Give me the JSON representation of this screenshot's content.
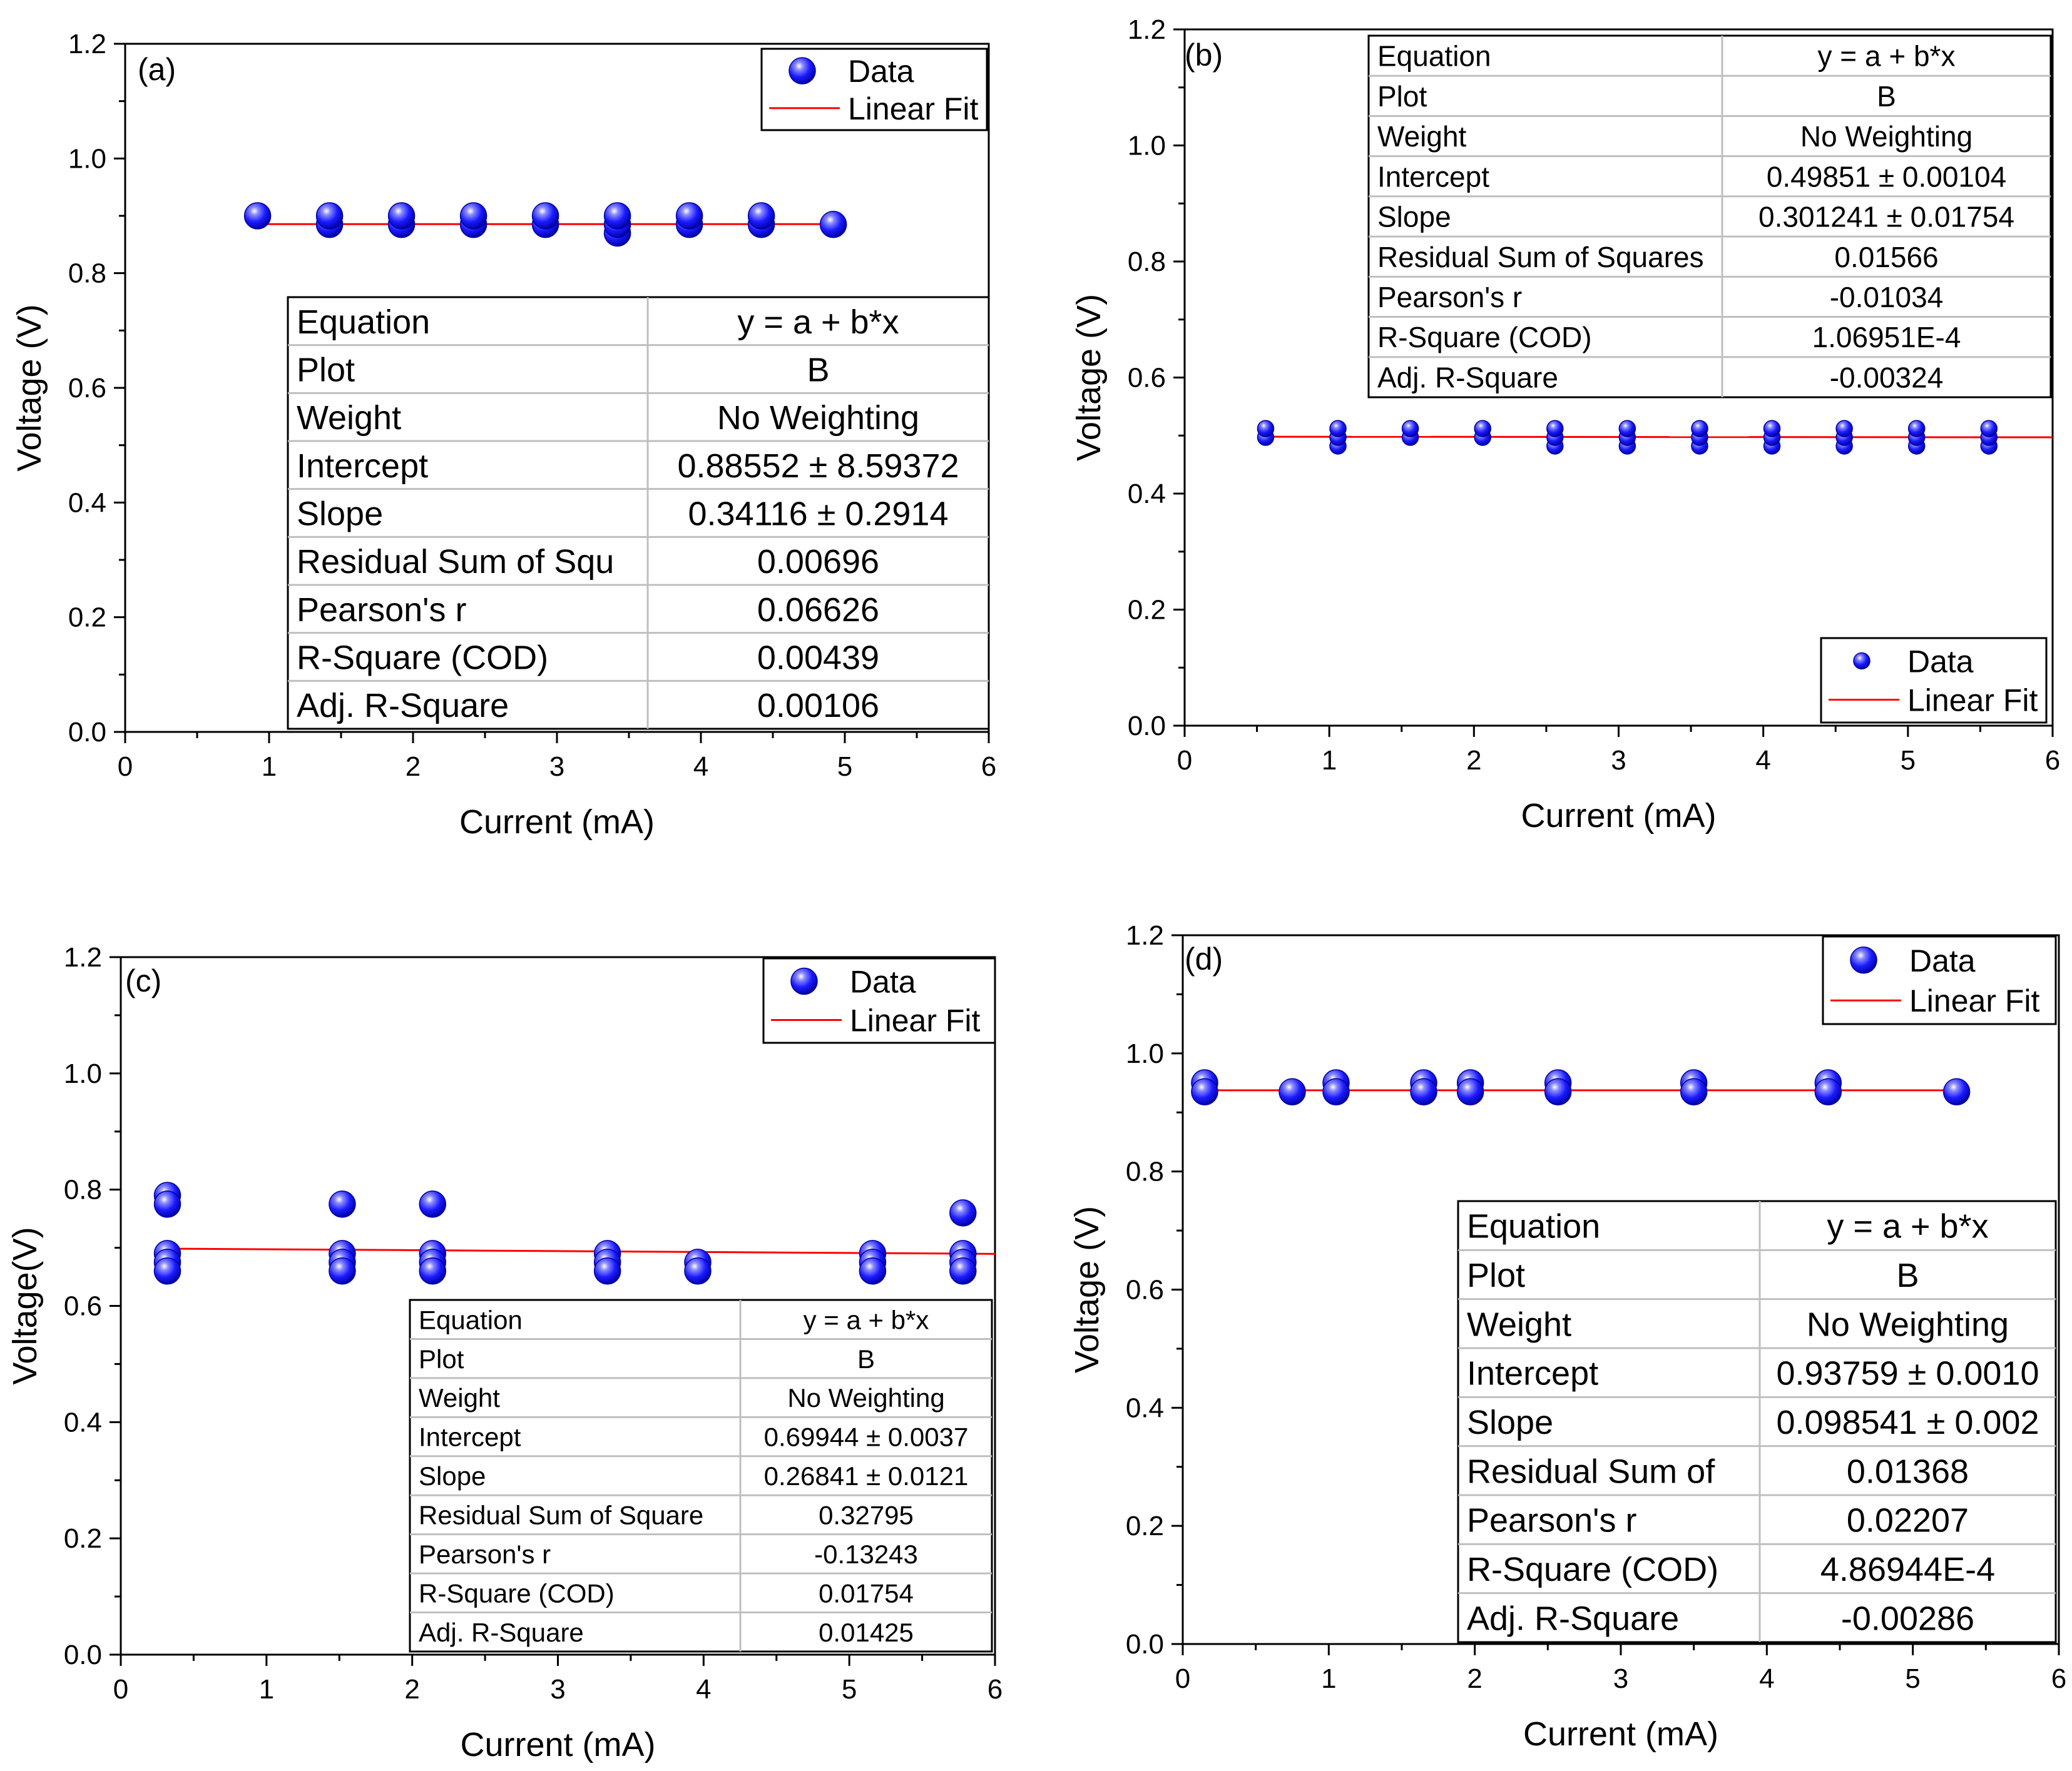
{
  "colors": {
    "marker": "#1a1aff",
    "marker_dark": "#0000a0",
    "fit_line": "#ff0000",
    "axis": "#000000",
    "table_grid": "#bfbfbf"
  },
  "chart_data": [
    {
      "panel": "(a)",
      "type": "scatter",
      "xlabel": "Current (mA)",
      "ylabel": "Voltage (V)",
      "xlim": [
        0,
        6
      ],
      "ylim": [
        0,
        1.2
      ],
      "xticks": [
        "0",
        "1",
        "2",
        "3",
        "4",
        "5",
        "6"
      ],
      "yticks": [
        "0.0",
        "0.2",
        "0.4",
        "0.6",
        "0.8",
        "1.0",
        "1.2"
      ],
      "legend": {
        "position": "top-right",
        "entries": [
          "Data",
          "Linear Fit"
        ]
      },
      "series": [
        {
          "name": "Data",
          "points": [
            [
              0.92,
              0.9
            ],
            [
              1.42,
              0.885
            ],
            [
              1.42,
              0.9
            ],
            [
              1.92,
              0.885
            ],
            [
              1.92,
              0.9
            ],
            [
              2.42,
              0.885
            ],
            [
              2.42,
              0.9
            ],
            [
              2.92,
              0.885
            ],
            [
              2.92,
              0.9
            ],
            [
              3.42,
              0.87
            ],
            [
              3.42,
              0.885
            ],
            [
              3.42,
              0.9
            ],
            [
              3.92,
              0.885
            ],
            [
              3.92,
              0.9
            ],
            [
              4.42,
              0.885
            ],
            [
              4.42,
              0.9
            ],
            [
              4.92,
              0.885
            ]
          ]
        },
        {
          "name": "Linear Fit",
          "line": [
            [
              0.92,
              0.8855
            ],
            [
              4.92,
              0.8855
            ]
          ]
        }
      ],
      "fit_table": {
        "rows": [
          [
            "Equation",
            "y = a + b*x"
          ],
          [
            "Plot",
            "B"
          ],
          [
            "Weight",
            "No Weighting"
          ],
          [
            "Intercept",
            "0.88552 ± 8.59372"
          ],
          [
            "Slope",
            "0.34116 ± 0.2914"
          ],
          [
            "Residual Sum of Squ",
            "0.00696"
          ],
          [
            "Pearson's r",
            "0.06626"
          ],
          [
            "R-Square (COD)",
            "0.00439"
          ],
          [
            "Adj. R-Square",
            "0.00106"
          ]
        ]
      }
    },
    {
      "panel": "(b)",
      "type": "scatter",
      "xlabel": "Current (mA)",
      "ylabel": "Voltage (V)",
      "xlim": [
        0,
        6
      ],
      "ylim": [
        0,
        1.2
      ],
      "xticks": [
        "0",
        "1",
        "2",
        "3",
        "4",
        "5",
        "6"
      ],
      "yticks": [
        "0.0",
        "0.2",
        "0.4",
        "0.6",
        "0.8",
        "1.0",
        "1.2"
      ],
      "legend": {
        "position": "bottom-right",
        "entries": [
          "Data",
          "Linear Fit"
        ]
      },
      "series": [
        {
          "name": "Data",
          "points": [
            [
              0.56,
              0.497
            ],
            [
              0.56,
              0.512
            ],
            [
              1.06,
              0.482
            ],
            [
              1.06,
              0.497
            ],
            [
              1.06,
              0.512
            ],
            [
              1.56,
              0.497
            ],
            [
              1.56,
              0.512
            ],
            [
              2.06,
              0.497
            ],
            [
              2.06,
              0.512
            ],
            [
              2.56,
              0.482
            ],
            [
              2.56,
              0.497
            ],
            [
              2.56,
              0.512
            ],
            [
              3.06,
              0.482
            ],
            [
              3.06,
              0.497
            ],
            [
              3.06,
              0.512
            ],
            [
              3.56,
              0.482
            ],
            [
              3.56,
              0.497
            ],
            [
              3.56,
              0.512
            ],
            [
              4.06,
              0.482
            ],
            [
              4.06,
              0.497
            ],
            [
              4.06,
              0.512
            ],
            [
              4.56,
              0.482
            ],
            [
              4.56,
              0.497
            ],
            [
              4.56,
              0.512
            ],
            [
              5.06,
              0.482
            ],
            [
              5.06,
              0.497
            ],
            [
              5.06,
              0.512
            ],
            [
              5.56,
              0.482
            ],
            [
              5.56,
              0.497
            ],
            [
              5.56,
              0.512
            ]
          ]
        },
        {
          "name": "Linear Fit",
          "line": [
            [
              0.56,
              0.498
            ],
            [
              6.0,
              0.497
            ]
          ]
        }
      ],
      "fit_table": {
        "rows": [
          [
            "Equation",
            "y = a + b*x"
          ],
          [
            "Plot",
            "B"
          ],
          [
            "Weight",
            "No Weighting"
          ],
          [
            "Intercept",
            "0.49851 ± 0.00104"
          ],
          [
            "Slope",
            "0.301241 ± 0.01754"
          ],
          [
            "Residual Sum of Squares",
            "0.01566"
          ],
          [
            "Pearson's r",
            "-0.01034"
          ],
          [
            "R-Square (COD)",
            "1.06951E-4"
          ],
          [
            "Adj. R-Square",
            "-0.00324"
          ]
        ]
      }
    },
    {
      "panel": "(c)",
      "type": "scatter",
      "xlabel": "Current (mA)",
      "ylabel": "Voltage(V)",
      "xlim": [
        0,
        6
      ],
      "ylim": [
        0,
        1.2
      ],
      "xticks": [
        "0",
        "1",
        "2",
        "3",
        "4",
        "5",
        "6"
      ],
      "yticks": [
        "0.0",
        "0.2",
        "0.4",
        "0.6",
        "0.8",
        "1.0",
        "1.2"
      ],
      "legend": {
        "position": "top-right",
        "entries": [
          "Data",
          "Linear Fit"
        ]
      },
      "series": [
        {
          "name": "Data",
          "points": [
            [
              0.32,
              0.79
            ],
            [
              0.32,
              0.775
            ],
            [
              0.32,
              0.69
            ],
            [
              0.32,
              0.675
            ],
            [
              0.32,
              0.66
            ],
            [
              1.52,
              0.775
            ],
            [
              1.52,
              0.69
            ],
            [
              1.52,
              0.675
            ],
            [
              1.52,
              0.66
            ],
            [
              2.14,
              0.775
            ],
            [
              2.14,
              0.69
            ],
            [
              2.14,
              0.675
            ],
            [
              2.14,
              0.66
            ],
            [
              3.34,
              0.69
            ],
            [
              3.34,
              0.675
            ],
            [
              3.34,
              0.66
            ],
            [
              3.96,
              0.675
            ],
            [
              3.96,
              0.66
            ],
            [
              5.16,
              0.69
            ],
            [
              5.16,
              0.675
            ],
            [
              5.16,
              0.66
            ],
            [
              5.78,
              0.76
            ],
            [
              5.78,
              0.69
            ],
            [
              5.78,
              0.675
            ],
            [
              5.78,
              0.66
            ]
          ]
        },
        {
          "name": "Linear Fit",
          "line": [
            [
              0.32,
              0.6985
            ],
            [
              6.0,
              0.6895
            ]
          ]
        }
      ],
      "fit_table": {
        "rows": [
          [
            "Equation",
            "y = a + b*x"
          ],
          [
            "Plot",
            "B"
          ],
          [
            "Weight",
            "No Weighting"
          ],
          [
            "Intercept",
            "0.69944 ± 0.0037"
          ],
          [
            "Slope",
            "0.26841 ± 0.0121"
          ],
          [
            "Residual Sum of Square",
            "0.32795"
          ],
          [
            "Pearson's r",
            "-0.13243"
          ],
          [
            "R-Square (COD)",
            "0.01754"
          ],
          [
            "Adj. R-Square",
            "0.01425"
          ]
        ]
      }
    },
    {
      "panel": "(d)",
      "type": "scatter",
      "xlabel": "Current (mA)",
      "ylabel": "Voltage (V)",
      "xlim": [
        0,
        6
      ],
      "ylim": [
        0,
        1.2
      ],
      "xticks": [
        "0",
        "1",
        "2",
        "3",
        "4",
        "5",
        "6"
      ],
      "yticks": [
        "0.0",
        "0.2",
        "0.4",
        "0.6",
        "0.8",
        "1.0",
        "1.2"
      ],
      "legend": {
        "position": "top-right",
        "entries": [
          "Data",
          "Linear Fit"
        ]
      },
      "series": [
        {
          "name": "Data",
          "points": [
            [
              0.15,
              0.95
            ],
            [
              0.15,
              0.935
            ],
            [
              0.75,
              0.935
            ],
            [
              1.05,
              0.95
            ],
            [
              1.05,
              0.935
            ],
            [
              1.65,
              0.95
            ],
            [
              1.65,
              0.935
            ],
            [
              1.97,
              0.95
            ],
            [
              1.97,
              0.935
            ],
            [
              2.57,
              0.95
            ],
            [
              2.57,
              0.935
            ],
            [
              3.5,
              0.95
            ],
            [
              3.5,
              0.935
            ],
            [
              4.42,
              0.95
            ],
            [
              4.42,
              0.935
            ],
            [
              5.3,
              0.935
            ]
          ]
        },
        {
          "name": "Linear Fit",
          "line": [
            [
              0.15,
              0.9375
            ],
            [
              5.3,
              0.9375
            ]
          ]
        }
      ],
      "fit_table": {
        "rows": [
          [
            "Equation",
            "y = a + b*x"
          ],
          [
            "Plot",
            "B"
          ],
          [
            "Weight",
            "No Weighting"
          ],
          [
            "Intercept",
            "0.93759 ± 0.0010"
          ],
          [
            "Slope",
            "0.098541 ± 0.002"
          ],
          [
            "Residual Sum of",
            "0.01368"
          ],
          [
            "Pearson's r",
            "0.02207"
          ],
          [
            "R-Square (COD)",
            "4.86944E-4"
          ],
          [
            "Adj. R-Square",
            "-0.00286"
          ]
        ]
      }
    }
  ]
}
